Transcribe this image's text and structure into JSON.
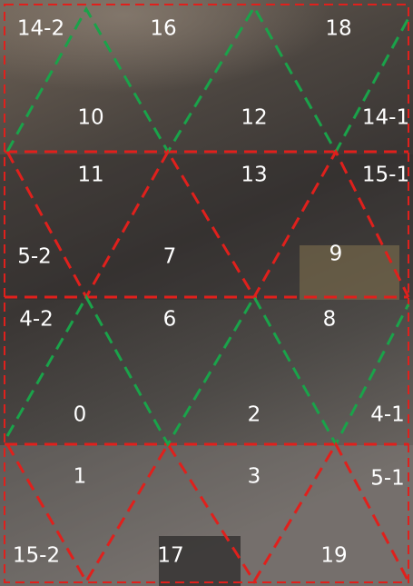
{
  "tiles": [
    "14-2",
    "16",
    "18",
    "10",
    "12",
    "14-1",
    "11",
    "13",
    "15-1",
    "5-2",
    "7",
    "9",
    "4-2",
    "6",
    "8",
    "0",
    "2",
    "4-1",
    "1",
    "3",
    "5-1",
    "15-2",
    "17",
    "19"
  ]
}
